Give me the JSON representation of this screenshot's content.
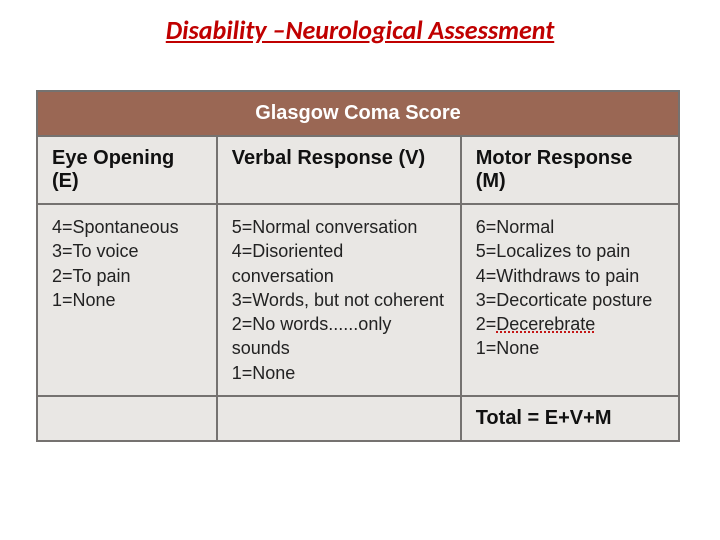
{
  "title": "Disability –Neurological Assessment",
  "table": {
    "caption": "Glasgow Coma Score",
    "columns": [
      {
        "key": "E",
        "header": "Eye Opening (E)"
      },
      {
        "key": "V",
        "header": "Verbal Response (V)"
      },
      {
        "key": "M",
        "header": "Motor Response (M)"
      }
    ],
    "rows": {
      "E": [
        "4=Spontaneous",
        "3=To voice",
        "2=To pain",
        "1=None"
      ],
      "V": [
        "5=Normal conversation",
        "4=Disoriented conversation",
        "3=Words, but not coherent",
        "2=No words......only sounds",
        "1=None"
      ],
      "M": [
        "6=Normal",
        "5=Localizes to pain",
        "4=Withdraws to pain",
        "3=Decorticate posture",
        "2=Decerebrate",
        "1=None"
      ]
    },
    "total_label": "Total = E+V+M",
    "colors": {
      "caption_bg": "#9a6754",
      "caption_text": "#ffffff",
      "cell_bg": "#e9e7e4",
      "border": "#757270",
      "title_color": "#c00000",
      "squiggle_color": "#c00000"
    },
    "fontsizes": {
      "title": 26,
      "caption": 20,
      "header": 20,
      "body": 18,
      "total": 20
    },
    "squiggle_line_index_M": 4
  }
}
